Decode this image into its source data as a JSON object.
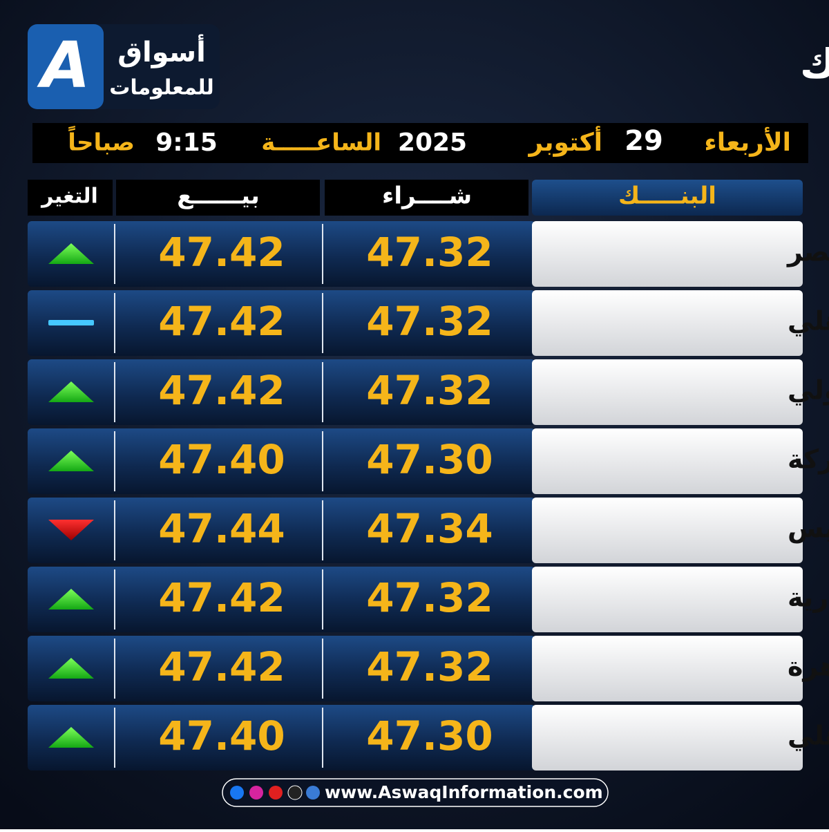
{
  "header": {
    "title": "حركـــة الـدولار في البنــوك",
    "logo_mark": "A",
    "logo_name": "أسواق",
    "logo_sub": "للمعلومات"
  },
  "date_line": {
    "weekday": "الأربعاء",
    "day": "29",
    "month": "أكتوبر",
    "year": "2025",
    "time_label": "الساعـــــة",
    "time": "9:15",
    "period": "صباحاً"
  },
  "table": {
    "columns": {
      "bank": "البنـــــك",
      "buy": "شــــراء",
      "sell": "بيــــــع",
      "change": "التغير"
    },
    "rows": [
      {
        "bank": "بنك مصر",
        "buy": "47.32",
        "sell": "47.42",
        "change": "up"
      },
      {
        "bank": "البنك الأهلي",
        "buy": "47.32",
        "sell": "47.42",
        "change": "flat"
      },
      {
        "bank": "البنك التجاري الدولي",
        "buy": "47.32",
        "sell": "47.42",
        "change": "up"
      },
      {
        "bank": "بنك البركة",
        "buy": "47.30",
        "sell": "47.40",
        "change": "up"
      },
      {
        "bank": "بنك قناة السويس",
        "buy": "47.34",
        "sell": "47.44",
        "change": "down"
      },
      {
        "bank": "بنك الإسكندرية",
        "buy": "47.32",
        "sell": "47.42",
        "change": "up"
      },
      {
        "bank": "بنك القاهرة",
        "buy": "47.32",
        "sell": "47.42",
        "change": "up"
      },
      {
        "bank": "QNB الأهلي",
        "buy": "47.30",
        "sell": "47.40",
        "change": "up"
      }
    ]
  },
  "footer": {
    "url": "www.AswaqInformation.com"
  }
}
